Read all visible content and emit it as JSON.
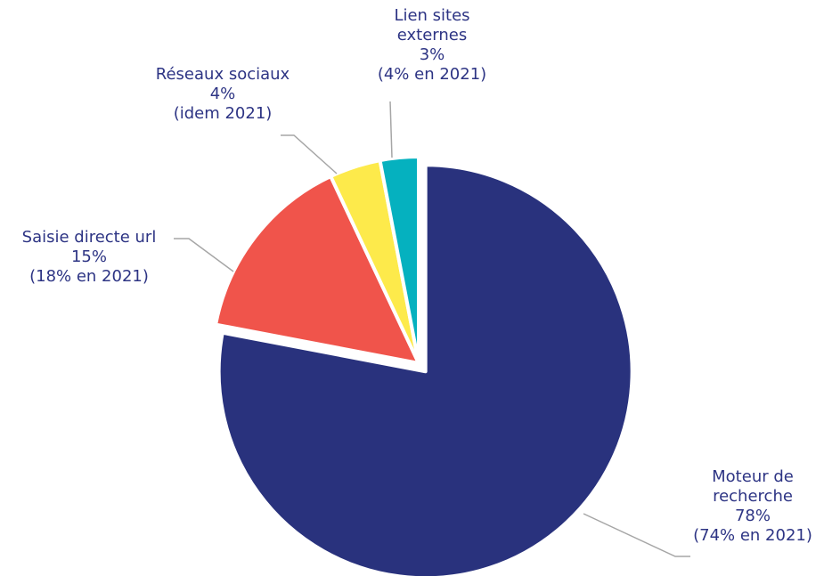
{
  "chart_data": {
    "type": "pie",
    "title": "",
    "slices": [
      {
        "key": "moteur",
        "value": 78,
        "color": "#29327d",
        "label_lines": [
          "Moteur de",
          "recherche",
          "78%",
          "(74% en 2021)"
        ]
      },
      {
        "key": "saisie",
        "value": 15,
        "color": "#f0544b",
        "label_lines": [
          "Saisie directe url",
          "15%",
          "(18% en 2021)"
        ]
      },
      {
        "key": "reseaux",
        "value": 4,
        "color": "#fdea4b",
        "label_lines": [
          "Réseaux sociaux",
          "4%",
          "(idem 2021)"
        ]
      },
      {
        "key": "lien",
        "value": 3,
        "color": "#05b1bf",
        "label_lines": [
          "Lien sites",
          "externes",
          "3%",
          "(4% en 2021)"
        ]
      }
    ],
    "start_angle_deg": 0,
    "direction": "clockwise",
    "exploded": [
      "moteur"
    ],
    "leader_color": "#a6a6a6"
  }
}
